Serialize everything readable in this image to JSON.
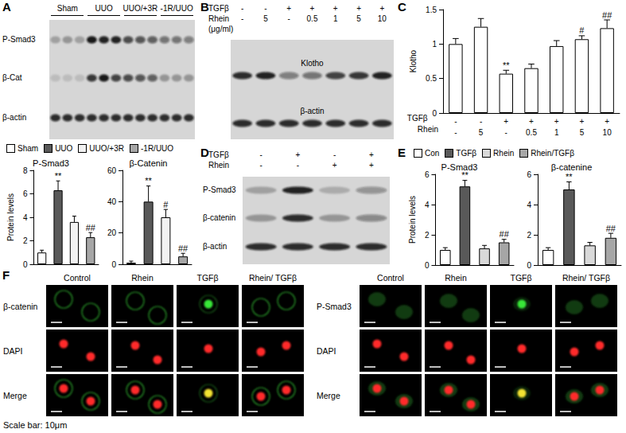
{
  "chart_data": [
    {
      "type": "bar",
      "title": "P-Smad3",
      "ylabel": "Protein levels",
      "categories": [
        "Sham",
        "UUO",
        "UUO/+3R",
        "-1R/UUO"
      ],
      "values": [
        1,
        6.3,
        3.6,
        2.3
      ],
      "errors": [
        0.2,
        0.8,
        0.5,
        0.4
      ],
      "annotations": [
        null,
        "**",
        null,
        "##"
      ],
      "colors": [
        "#ffffff",
        "#595959",
        "#f2f2f2",
        "#a6a6a6"
      ],
      "ylim": [
        0,
        8
      ],
      "yticks": [
        0,
        2,
        4,
        6,
        8
      ],
      "tick_labels": "y",
      "legend": "top",
      "grid": false
    },
    {
      "type": "bar",
      "title": "β-Catenin",
      "categories": [
        "Sham",
        "UUO",
        "UUO/+3R",
        "-1R/UUO"
      ],
      "values": [
        1,
        40,
        30,
        5
      ],
      "errors": [
        1,
        10,
        5,
        2
      ],
      "annotations": [
        null,
        "**",
        "#",
        "##"
      ],
      "colors": [
        "#ffffff",
        "#595959",
        "#f2f2f2",
        "#a6a6a6"
      ],
      "ylim": [
        0,
        60
      ],
      "yticks": [
        0,
        20,
        40,
        60
      ],
      "tick_labels": "y",
      "grid": false
    },
    {
      "type": "bar",
      "ylabel": "Klotho",
      "x_rows": [
        {
          "label": "TGFβ",
          "values": [
            "-",
            "-",
            "+",
            "+",
            "+",
            "+",
            "+"
          ]
        },
        {
          "label": "Rhein",
          "values": [
            "-",
            "5",
            "-",
            "0.5",
            "1",
            "5",
            "10"
          ]
        }
      ],
      "values": [
        1,
        1.25,
        0.57,
        0.65,
        0.97,
        1.07,
        1.23
      ],
      "errors": [
        0.08,
        0.12,
        0.05,
        0.06,
        0.08,
        0.05,
        0.12
      ],
      "annotations": [
        null,
        null,
        "**",
        null,
        null,
        "#",
        "##"
      ],
      "color": "#ffffff",
      "ylim": [
        0,
        1.5
      ],
      "yticks": [
        0,
        0.5,
        1,
        1.5
      ],
      "grid": false
    },
    {
      "type": "bar",
      "title": "P-Smad3",
      "ylabel": "Protein levels",
      "categories": [
        "Con",
        "TGFβ",
        "Rhein",
        "Rhein/TGFβ"
      ],
      "values": [
        1,
        5.2,
        1.1,
        1.5
      ],
      "errors": [
        0.15,
        0.4,
        0.2,
        0.2
      ],
      "annotations": [
        null,
        "**",
        null,
        "##"
      ],
      "colors": [
        "#ffffff",
        "#595959",
        "#d9d9d9",
        "#a6a6a6"
      ],
      "ylim": [
        0,
        6
      ],
      "yticks": [
        0,
        2,
        4,
        6
      ],
      "tick_labels": "y",
      "legend": "top",
      "grid": false
    },
    {
      "type": "bar",
      "title": "β-catenine",
      "categories": [
        "Con",
        "TGFβ",
        "Rhein",
        "Rhein/TGFβ"
      ],
      "values": [
        1,
        5.0,
        1.3,
        1.8
      ],
      "errors": [
        0.15,
        0.5,
        0.2,
        0.3
      ],
      "annotations": [
        null,
        "**",
        null,
        "##"
      ],
      "colors": [
        "#ffffff",
        "#595959",
        "#d9d9d9",
        "#a6a6a6"
      ],
      "ylim": [
        0,
        6
      ],
      "yticks": [
        0,
        2,
        4,
        6
      ],
      "tick_labels": "y",
      "grid": false
    }
  ],
  "figure": {
    "A": {
      "letter": "A",
      "groups": [
        "Sham",
        "UUO",
        "UUO/+3R",
        "-1R/UUO"
      ],
      "rows": [
        "P-Smad3",
        "β-Cat",
        "β-actin"
      ]
    },
    "B": {
      "letter": "B",
      "conditions": [
        {
          "label": "TGFβ",
          "values": [
            "-",
            "-",
            "+",
            "+",
            "+",
            "+",
            "+"
          ]
        },
        {
          "label": "Rhein",
          "values": [
            "-",
            "5",
            "-",
            "0.5",
            "1",
            "5",
            "10"
          ]
        }
      ],
      "unit": "(μg/ml)",
      "rows": [
        "Klotho",
        "β-actin"
      ]
    },
    "C": {
      "letter": "C"
    },
    "D": {
      "letter": "D",
      "conditions": [
        {
          "label": "TGFβ",
          "values": [
            "-",
            "+",
            "-",
            "+"
          ]
        },
        {
          "label": "Rhein",
          "values": [
            "-",
            "-",
            "+",
            "+"
          ]
        }
      ],
      "rows": [
        "P-Smad3",
        "β-catenin",
        "β-actin"
      ]
    },
    "E": {
      "letter": "E"
    },
    "F": {
      "letter": "F",
      "columns": [
        "Control",
        "Rhein",
        "TGFβ",
        "Rhein/ TGFβ"
      ],
      "left_rows": [
        "β-catenin",
        "DAPI",
        "Merge"
      ],
      "right_rows": [
        "P-Smad3",
        "DAPI",
        "Merge"
      ],
      "scale_bar": "Scale bar: 10μm"
    }
  }
}
